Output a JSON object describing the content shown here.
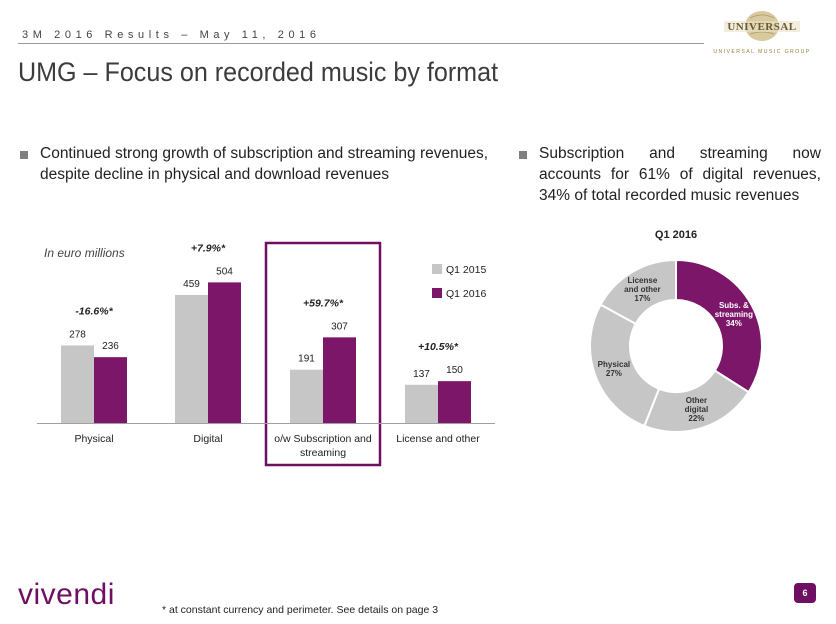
{
  "header": {
    "text": "3M 2016 Results – May 11, 2016"
  },
  "title": "UMG – Focus on recorded music by format",
  "brand": {
    "logo_name": "UNIVERSAL",
    "logo_sub": "UNIVERSAL MUSIC GROUP",
    "footer_logo": "vivendi"
  },
  "bullets": {
    "left": "Continued strong growth of subscription and streaming revenues, despite decline in physical and download revenues",
    "right": "Subscription and streaming now accounts for 61% of digital revenues, 34% of total recorded music revenues"
  },
  "unit_note": "In euro millions",
  "colors": {
    "q1_2015": "#c6c6c6",
    "q1_2016": "#7b1668",
    "accent": "#6e0f63"
  },
  "chart_data": [
    {
      "type": "bar",
      "categories": [
        "Physical",
        "Digital",
        "o/w Subscription and streaming",
        "License and other"
      ],
      "series": [
        {
          "name": "Q1 2015",
          "values": [
            278,
            459,
            191,
            137
          ]
        },
        {
          "name": "Q1 2016",
          "values": [
            236,
            504,
            307,
            150
          ]
        }
      ],
      "growth_labels": [
        "-16.6%*",
        "+7.9%*",
        "+59.7%*",
        "+10.5%*"
      ],
      "highlighted_category": "o/w Subscription and streaming",
      "legend_position": "top-right",
      "grid": false
    },
    {
      "type": "pie",
      "title": "Q1 2016",
      "slices": [
        {
          "label": "Subs. & streaming",
          "value": 34,
          "value_label": "34%",
          "color": "#7b1668"
        },
        {
          "label": "Other digital",
          "value": 22,
          "value_label": "22%",
          "color": "#c6c6c6"
        },
        {
          "label": "Physical",
          "value": 27,
          "value_label": "27%",
          "color": "#c6c6c6"
        },
        {
          "label": "License and other",
          "value": 17,
          "value_label": "17%",
          "color": "#c6c6c6"
        }
      ]
    }
  ],
  "footnote": "* at constant currency and perimeter. See details on page 3",
  "page_number": "6"
}
